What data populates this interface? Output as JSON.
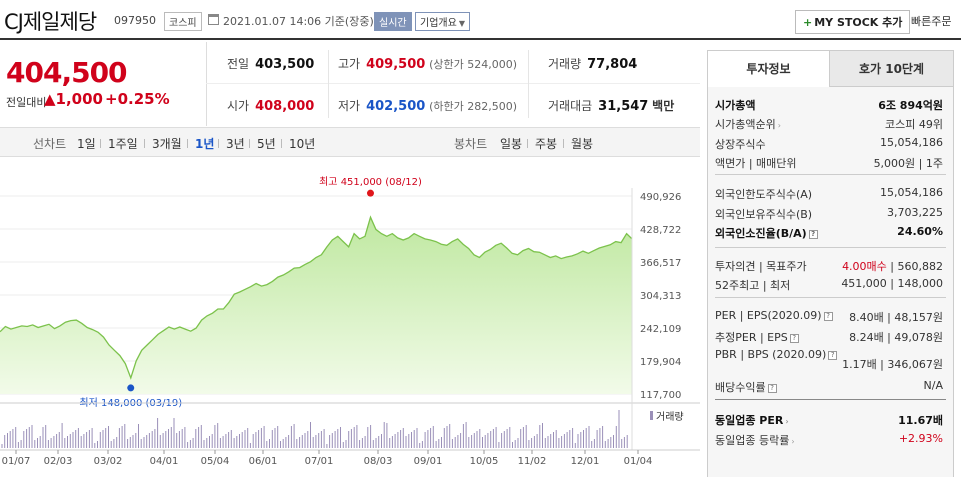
{
  "header": {
    "title": "CJ제일제당",
    "code": "097950",
    "market": "코스피",
    "datetime": "2021.01.07 14:06 기준(장중)",
    "realtime": "실시간",
    "info_select": "기업개요",
    "mystock": "MY STOCK 추가",
    "quick_order": "빠른주문"
  },
  "price": {
    "current": "404,500",
    "change_label": "전일대비",
    "change_value": "1,000",
    "change_percent": "+0.25%",
    "color_up": "#d0021b"
  },
  "stats": {
    "prev_label": "전일",
    "prev_value": "403,500",
    "high_label": "고가",
    "high_value": "409,500",
    "high_limit": "(상한가 524,000)",
    "volume_label": "거래량",
    "volume_value": "77,804",
    "open_label": "시가",
    "open_value": "408,000",
    "low_label": "저가",
    "low_value": "402,500",
    "low_limit": "(하한가 282,500)",
    "amount_label": "거래대금",
    "amount_value": "31,547",
    "amount_unit": "백만"
  },
  "tabs": {
    "line_label": "선차트",
    "line": [
      "1일",
      "1주일",
      "3개월",
      "1년",
      "3년",
      "5년",
      "10년"
    ],
    "active": "1년",
    "candle_label": "봉차트",
    "candle": [
      "일봉",
      "주봉",
      "월봉"
    ]
  },
  "chart_data": {
    "type": "area",
    "y_ticks": [
      "490,926",
      "428,722",
      "366,517",
      "304,313",
      "242,109",
      "179,904",
      "117,700"
    ],
    "x_ticks": [
      "01/07",
      "02/03",
      "03/02",
      "04/01",
      "05/04",
      "06/01",
      "07/01",
      "08/03",
      "09/01",
      "10/05",
      "11/02",
      "12/01",
      "01/04"
    ],
    "ylim": [
      117700,
      490926
    ],
    "max_label": "최고 451,000 (08/12)",
    "min_label": "최저 148,000 (03/19)",
    "volume_legend": "거래량",
    "series": [
      {
        "values": [
          235000,
          245000,
          240000,
          243000,
          246000,
          245000,
          248000,
          243000,
          246000,
          249000,
          241000,
          246000,
          253000,
          256000,
          257000,
          251000,
          243000,
          239000,
          234000,
          225000,
          210000,
          200000,
          190000,
          175000,
          148000,
          180000,
          200000,
          210000,
          220000,
          230000,
          237000,
          244000,
          240000,
          244000,
          240000,
          236000,
          242000,
          257000,
          265000,
          270000,
          278000,
          278000,
          290000,
          306000,
          310000,
          315000,
          320000,
          326000,
          321000,
          324000,
          330000,
          338000,
          342000,
          348000,
          355000,
          356000,
          362000,
          367000,
          375000,
          380000,
          395000,
          408000,
          415000,
          405000,
          395000,
          420000,
          410000,
          415000,
          451000,
          428000,
          420000,
          415000,
          420000,
          412000,
          408000,
          412000,
          420000,
          415000,
          410000,
          408000,
          405000,
          400000,
          398000,
          405000,
          410000,
          400000,
          392000,
          380000,
          375000,
          385000,
          390000,
          398000,
          402000,
          393000,
          383000,
          380000,
          388000,
          392000,
          386000,
          385000,
          380000,
          375000,
          378000,
          373000,
          376000,
          378000,
          382000,
          387000,
          383000,
          388000,
          393000,
          396000,
          399000,
          405000,
          403000,
          420000,
          410000
        ]
      }
    ]
  },
  "panel": {
    "tab_info": "투자정보",
    "tab_hoga": "호가 10단계",
    "market_cap_label": "시가총액",
    "market_cap_value": "6조 894억원",
    "cap_rank_label": "시가총액순위",
    "cap_rank_value": "코스피 49위",
    "shares_label": "상장주식수",
    "shares_value": "15,054,186",
    "face_label": "액면가 | 매매단위",
    "face_value": "5,000원 | 1주",
    "foreign_limit_label": "외국인한도주식수(A)",
    "foreign_limit_value": "15,054,186",
    "foreign_hold_label": "외국인보유주식수(B)",
    "foreign_hold_value": "3,703,225",
    "foreign_ratio_label": "외국인소진율(B/A)",
    "foreign_ratio_value": "24.60%",
    "opinion_label": "투자의견 | 목표주가",
    "opinion_value": "4.00매수",
    "target_price": "560,882",
    "week52_label": "52주최고 | 최저",
    "week52_value": "451,000 | 148,000",
    "per_label": "PER | EPS(2020.09)",
    "per_value": "8.40배 | 48,157원",
    "est_per_label": "추정PER | EPS",
    "est_per_value": "8.24배 | 49,078원",
    "pbr_label": "PBR | BPS (2020.09)",
    "pbr_value": "1.17배 | 346,067원",
    "dividend_label": "배당수익률",
    "dividend_value": "N/A",
    "sector_per_label": "동일업종 PER",
    "sector_per_value": "11.67배",
    "sector_rate_label": "동일업종 등락률",
    "sector_rate_value": "+2.93%"
  }
}
